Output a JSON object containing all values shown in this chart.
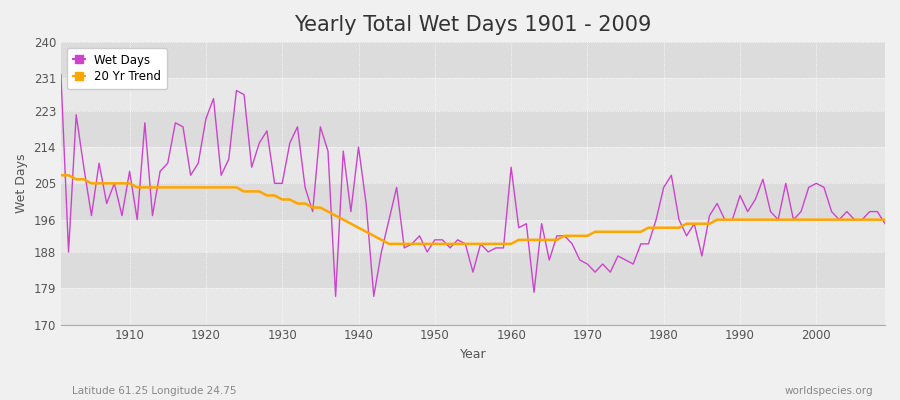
{
  "title": "Yearly Total Wet Days 1901 - 2009",
  "xlabel": "Year",
  "ylabel": "Wet Days",
  "subtitle": "Latitude 61.25 Longitude 24.75",
  "watermark": "worldspecies.org",
  "years": [
    1901,
    1902,
    1903,
    1904,
    1905,
    1906,
    1907,
    1908,
    1909,
    1910,
    1911,
    1912,
    1913,
    1914,
    1915,
    1916,
    1917,
    1918,
    1919,
    1920,
    1921,
    1922,
    1923,
    1924,
    1925,
    1926,
    1927,
    1928,
    1929,
    1930,
    1931,
    1932,
    1933,
    1934,
    1935,
    1936,
    1937,
    1938,
    1939,
    1940,
    1941,
    1942,
    1943,
    1944,
    1945,
    1946,
    1947,
    1948,
    1949,
    1950,
    1951,
    1952,
    1953,
    1954,
    1955,
    1956,
    1957,
    1958,
    1959,
    1960,
    1961,
    1962,
    1963,
    1964,
    1965,
    1966,
    1967,
    1968,
    1969,
    1970,
    1971,
    1972,
    1973,
    1974,
    1975,
    1976,
    1977,
    1978,
    1979,
    1980,
    1981,
    1982,
    1983,
    1984,
    1985,
    1986,
    1987,
    1988,
    1989,
    1990,
    1991,
    1992,
    1993,
    1994,
    1995,
    1996,
    1997,
    1998,
    1999,
    2000,
    2001,
    2002,
    2003,
    2004,
    2005,
    2006,
    2007,
    2008,
    2009
  ],
  "wet_days": [
    232,
    188,
    222,
    209,
    197,
    210,
    200,
    205,
    197,
    208,
    196,
    220,
    197,
    208,
    210,
    220,
    219,
    207,
    210,
    221,
    226,
    207,
    211,
    228,
    227,
    209,
    215,
    218,
    205,
    205,
    215,
    219,
    204,
    198,
    219,
    213,
    177,
    213,
    198,
    214,
    200,
    177,
    188,
    196,
    204,
    189,
    190,
    192,
    188,
    191,
    191,
    189,
    191,
    190,
    183,
    190,
    188,
    189,
    189,
    209,
    194,
    195,
    178,
    195,
    186,
    192,
    192,
    190,
    186,
    185,
    183,
    185,
    183,
    187,
    186,
    185,
    190,
    190,
    196,
    204,
    207,
    196,
    192,
    195,
    187,
    197,
    200,
    196,
    196,
    202,
    198,
    201,
    206,
    198,
    196,
    205,
    196,
    198,
    204,
    205,
    204,
    198,
    196,
    198,
    196,
    196,
    198,
    198,
    195
  ],
  "trend": [
    207,
    207,
    206,
    206,
    205,
    205,
    205,
    205,
    205,
    205,
    204,
    204,
    204,
    204,
    204,
    204,
    204,
    204,
    204,
    204,
    204,
    204,
    204,
    204,
    203,
    203,
    203,
    202,
    202,
    201,
    201,
    200,
    200,
    199,
    199,
    198,
    197,
    196,
    195,
    194,
    193,
    192,
    191,
    190,
    190,
    190,
    190,
    190,
    190,
    190,
    190,
    190,
    190,
    190,
    190,
    190,
    190,
    190,
    190,
    190,
    191,
    191,
    191,
    191,
    191,
    191,
    192,
    192,
    192,
    192,
    193,
    193,
    193,
    193,
    193,
    193,
    193,
    194,
    194,
    194,
    194,
    194,
    195,
    195,
    195,
    195,
    196,
    196,
    196,
    196,
    196,
    196,
    196,
    196,
    196,
    196,
    196,
    196,
    196,
    196,
    196,
    196,
    196,
    196,
    196,
    196,
    196,
    196,
    196
  ],
  "wet_days_color": "#CC44CC",
  "trend_color": "#FFA500",
  "background_color": "#F0F0F0",
  "plot_bg_light": "#E8E8E8",
  "plot_bg_dark": "#DCDCDC",
  "grid_color": "#ffffff",
  "ylim": [
    170,
    240
  ],
  "yticks": [
    170,
    179,
    188,
    196,
    205,
    214,
    223,
    231,
    240
  ],
  "xticks": [
    1910,
    1920,
    1930,
    1940,
    1950,
    1960,
    1970,
    1980,
    1990,
    2000
  ],
  "xlim": [
    1901,
    2009
  ],
  "title_fontsize": 15,
  "label_fontsize": 9,
  "tick_fontsize": 8.5
}
